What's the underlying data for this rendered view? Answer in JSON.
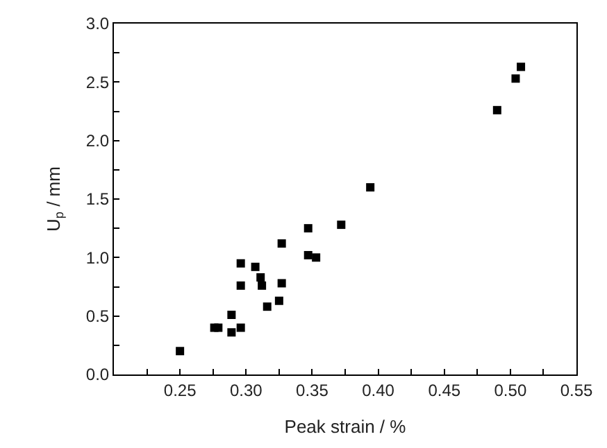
{
  "chart_data": {
    "type": "scatter",
    "xlabel": "Peak strain / %",
    "ylabel": "U$_{p}$ / mm",
    "x": [
      0.25,
      0.276,
      0.279,
      0.289,
      0.289,
      0.296,
      0.296,
      0.296,
      0.307,
      0.311,
      0.312,
      0.316,
      0.325,
      0.327,
      0.327,
      0.347,
      0.347,
      0.353,
      0.372,
      0.394,
      0.49,
      0.504,
      0.508
    ],
    "series": [
      {
        "color": "#000000",
        "values": [
          0.2,
          0.4,
          0.4,
          0.51,
          0.36,
          0.4,
          0.76,
          0.95,
          0.92,
          0.83,
          0.76,
          0.58,
          0.63,
          0.78,
          1.12,
          1.25,
          1.02,
          1.0,
          1.28,
          1.6,
          2.26,
          2.53,
          2.63
        ]
      }
    ],
    "marker": "square",
    "xlim": [
      0.2,
      0.55
    ],
    "ylim": [
      0,
      3.0
    ],
    "xticks": [
      {
        "value": 0.225,
        "label": null
      },
      0.25,
      {
        "value": 0.275,
        "label": null
      },
      "0.30",
      {
        "value": 0.325,
        "label": null
      },
      0.35,
      {
        "value": 0.375,
        "label": null
      },
      "0.40",
      {
        "value": 0.425,
        "label": null
      },
      0.45,
      {
        "value": 0.475,
        "label": null
      },
      "0.50",
      {
        "value": 0.525,
        "label": null
      },
      0.55
    ],
    "yticks": [
      "0.0",
      {
        "value": 0.25,
        "label": null
      },
      0.5,
      {
        "value": 0.75,
        "label": null
      },
      "1.0",
      {
        "value": 1.25,
        "label": null
      },
      1.5,
      {
        "value": 1.75,
        "label": null
      },
      "2.0",
      {
        "value": 2.25,
        "label": null
      },
      2.5,
      {
        "value": 2.75,
        "label": null
      },
      "3.0"
    ]
  }
}
